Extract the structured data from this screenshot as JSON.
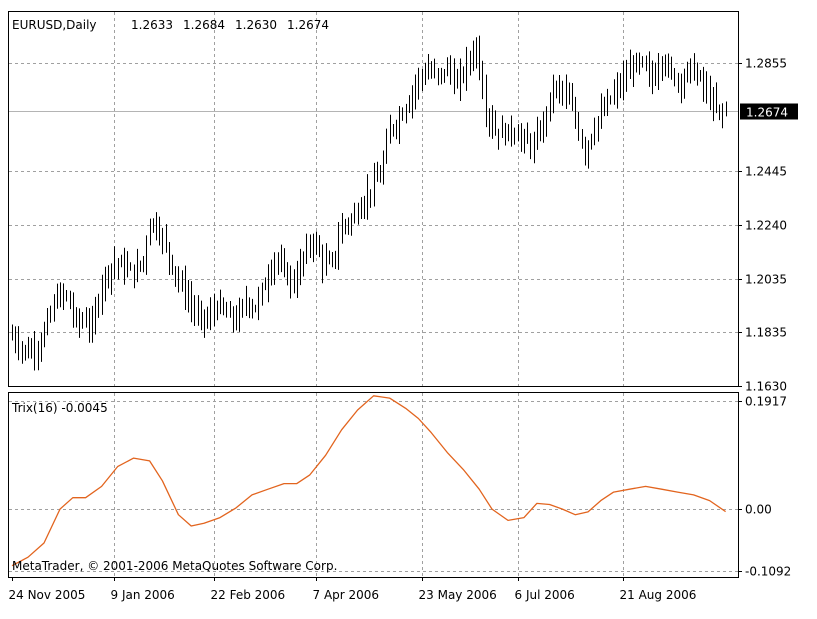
{
  "chart_data": [
    {
      "type": "bar",
      "subtype": "ohlc",
      "symbol": "EURUSD",
      "timeframe": "Daily",
      "title": "EURUSD,Daily",
      "ohlc_readout": [
        "1.2633",
        "1.2684",
        "1.2630",
        "1.2674"
      ],
      "current_price": 1.2674,
      "current_price_label": "1.2674",
      "ylim": [
        1.163,
        1.305
      ],
      "yticks": [
        1.163,
        1.1835,
        1.2035,
        1.224,
        1.2445,
        1.2855
      ],
      "ytick_labels": [
        "1.1630",
        "1.1835",
        "1.2035",
        "1.2240",
        "1.2445",
        "1.2855"
      ],
      "grid": true,
      "bar_color": "#000000",
      "anchors": [
        [
          0,
          1.182
        ],
        [
          4,
          1.176
        ],
        [
          8,
          1.178
        ],
        [
          11,
          1.187
        ],
        [
          14,
          1.197
        ],
        [
          17,
          1.197
        ],
        [
          20,
          1.187
        ],
        [
          23,
          1.188
        ],
        [
          25,
          1.185
        ],
        [
          28,
          1.203
        ],
        [
          32,
          1.21
        ],
        [
          35,
          1.208
        ],
        [
          38,
          1.206
        ],
        [
          41,
          1.211
        ],
        [
          43,
          1.226
        ],
        [
          46,
          1.222
        ],
        [
          49,
          1.212
        ],
        [
          52,
          1.203
        ],
        [
          55,
          1.196
        ],
        [
          58,
          1.189
        ],
        [
          61,
          1.188
        ],
        [
          64,
          1.194
        ],
        [
          67,
          1.19
        ],
        [
          70,
          1.188
        ],
        [
          73,
          1.195
        ],
        [
          76,
          1.193
        ],
        [
          79,
          1.202
        ],
        [
          82,
          1.212
        ],
        [
          85,
          1.206
        ],
        [
          88,
          1.202
        ],
        [
          91,
          1.212
        ],
        [
          94,
          1.219
        ],
        [
          97,
          1.21
        ],
        [
          100,
          1.209
        ],
        [
          103,
          1.224
        ],
        [
          106,
          1.226
        ],
        [
          109,
          1.232
        ],
        [
          112,
          1.238
        ],
        [
          115,
          1.243
        ],
        [
          118,
          1.26
        ],
        [
          121,
          1.265
        ],
        [
          124,
          1.272
        ],
        [
          127,
          1.28
        ],
        [
          130,
          1.283
        ],
        [
          133,
          1.28
        ],
        [
          136,
          1.284
        ],
        [
          139,
          1.277
        ],
        [
          142,
          1.285
        ],
        [
          145,
          1.292
        ],
        [
          148,
          1.268
        ],
        [
          151,
          1.26
        ],
        [
          154,
          1.259
        ],
        [
          157,
          1.26
        ],
        [
          160,
          1.256
        ],
        [
          163,
          1.254
        ],
        [
          166,
          1.263
        ],
        [
          169,
          1.276
        ],
        [
          172,
          1.275
        ],
        [
          175,
          1.268
        ],
        [
          177,
          1.26
        ],
        [
          179,
          1.252
        ],
        [
          182,
          1.262
        ],
        [
          185,
          1.268
        ],
        [
          188,
          1.274
        ],
        [
          191,
          1.279
        ],
        [
          194,
          1.285
        ],
        [
          197,
          1.285
        ],
        [
          200,
          1.279
        ],
        [
          203,
          1.288
        ],
        [
          206,
          1.281
        ],
        [
          209,
          1.279
        ],
        [
          212,
          1.284
        ],
        [
          215,
          1.279
        ],
        [
          218,
          1.272
        ],
        [
          221,
          1.266
        ],
        [
          223,
          1.268
        ]
      ]
    },
    {
      "type": "line",
      "name": "Trix(16)",
      "label": "Trix(16) -0.0045",
      "last_value": -0.0045,
      "ylim": [
        -0.12,
        0.205
      ],
      "yticks": [
        -0.1092,
        0.0,
        0.1917
      ],
      "ytick_labels": [
        "-0.1092",
        "0.00",
        "0.1917"
      ],
      "color": "#e2641e",
      "grid": true,
      "x": [
        0,
        5,
        10,
        15,
        19,
        23,
        28,
        33,
        38,
        43,
        47,
        52,
        56,
        60,
        65,
        70,
        75,
        80,
        85,
        89,
        93,
        98,
        103,
        108,
        113,
        118,
        123,
        127,
        131,
        136,
        141,
        146,
        150,
        155,
        160,
        164,
        168,
        172,
        176,
        180,
        184,
        188,
        193,
        198,
        203,
        208,
        213,
        218,
        223
      ],
      "values": [
        -0.1,
        -0.085,
        -0.06,
        0.0,
        0.02,
        0.02,
        0.04,
        0.075,
        0.09,
        0.085,
        0.05,
        -0.01,
        -0.03,
        -0.025,
        -0.015,
        0.002,
        0.025,
        0.035,
        0.045,
        0.045,
        0.06,
        0.095,
        0.14,
        0.175,
        0.2,
        0.196,
        0.178,
        0.16,
        0.135,
        0.1,
        0.07,
        0.035,
        0.0,
        -0.02,
        -0.015,
        0.01,
        0.008,
        0.0,
        -0.01,
        -0.005,
        0.015,
        0.03,
        0.035,
        0.04,
        0.035,
        0.03,
        0.025,
        0.015,
        -0.0045
      ]
    }
  ],
  "x_axis": {
    "ticks": [
      {
        "label": "24 Nov 2005",
        "index": 0
      },
      {
        "label": "9 Jan 2006",
        "index": 32
      },
      {
        "label": "22 Feb 2006",
        "index": 63
      },
      {
        "label": "7 Apr 2006",
        "index": 95
      },
      {
        "label": "23 May 2006",
        "index": 128
      },
      {
        "label": "6 Jul 2006",
        "index": 158
      },
      {
        "label": "21 Aug 2006",
        "index": 191
      }
    ]
  },
  "watermark": "MetaTrader, © 2001-2006 MetaQuotes Software Corp."
}
